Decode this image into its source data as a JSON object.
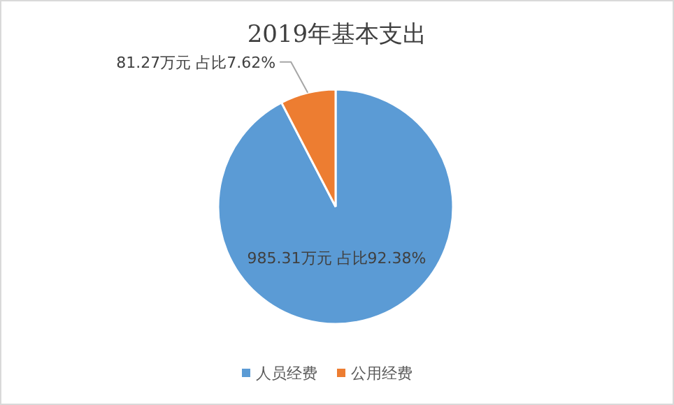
{
  "chart_data": {
    "type": "pie",
    "title": "2019年基本支出",
    "categories": [
      "人员经费",
      "公用经费"
    ],
    "values": [
      985.31,
      81.27
    ],
    "colors": [
      "#5b9bd5",
      "#ed7d31"
    ],
    "value_labels": [
      "985.31万元  占比92.38%",
      "81.27万元  占比7.62%"
    ],
    "legend": "bottom"
  }
}
